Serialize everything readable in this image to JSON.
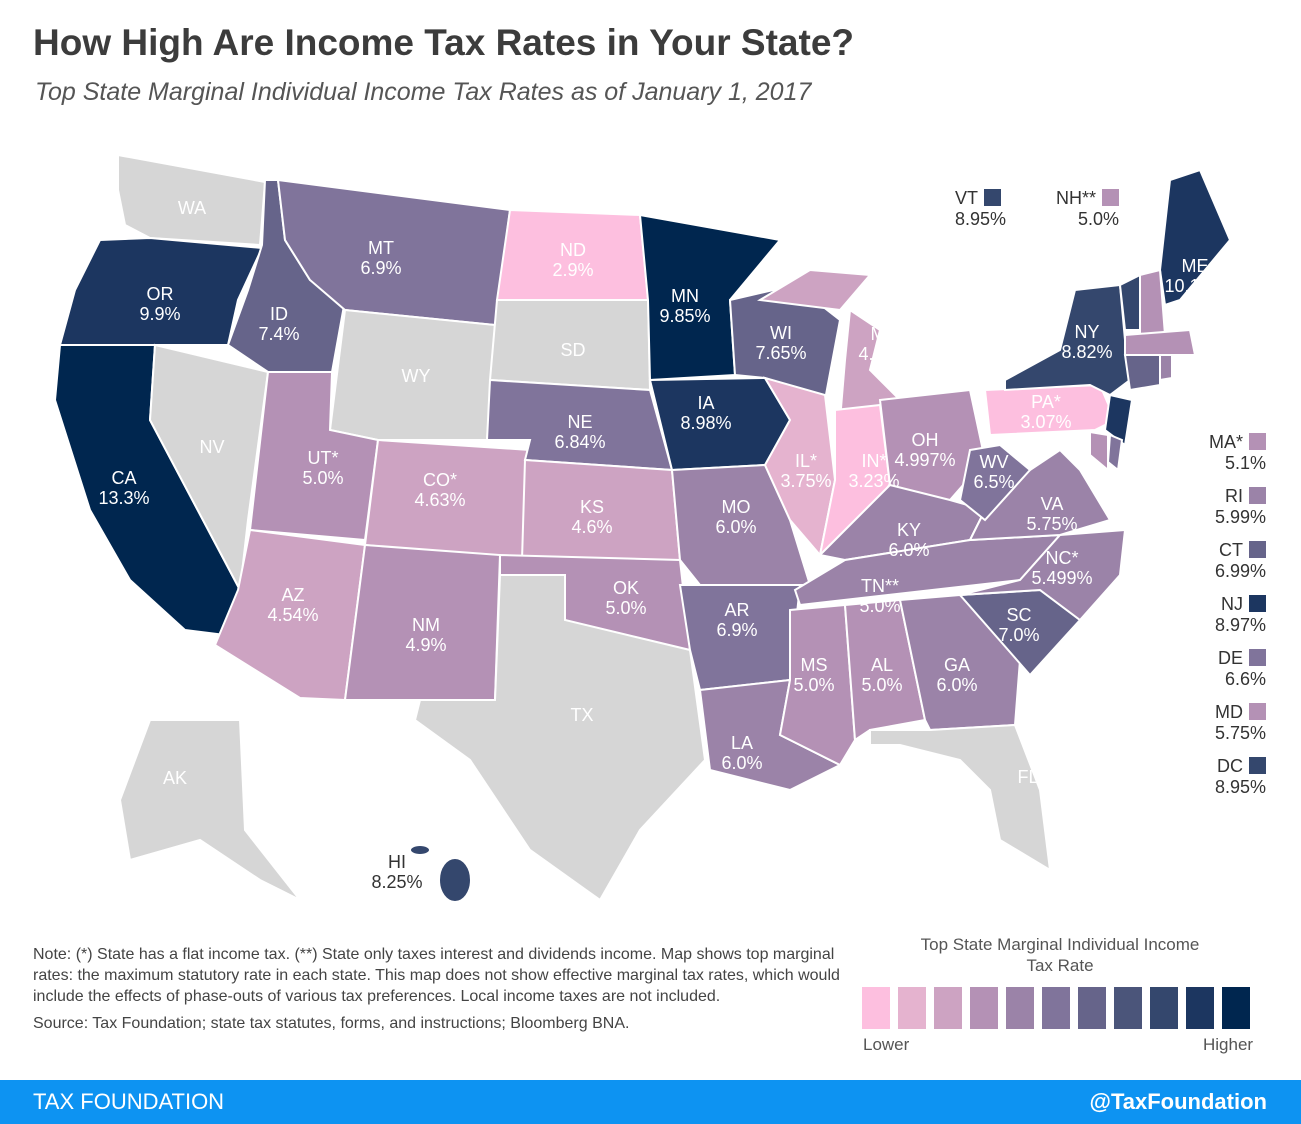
{
  "title": "How High Are Income Tax Rates in Your State?",
  "subtitle": "Top State Marginal Individual Income Tax Rates as of January 1, 2017",
  "states": [
    {
      "abbr": "WA",
      "rate": ""
    },
    {
      "abbr": "OR",
      "rate": "9.9%",
      "color": "#1c3660"
    },
    {
      "abbr": "CA",
      "rate": "13.3%",
      "color": "#00264f"
    },
    {
      "abbr": "NV",
      "rate": ""
    },
    {
      "abbr": "ID",
      "rate": "7.4%",
      "color": "#66648a"
    },
    {
      "abbr": "MT",
      "rate": "6.9%",
      "color": "#80749b"
    },
    {
      "abbr": "WY",
      "rate": ""
    },
    {
      "abbr": "UT*",
      "rate": "5.0%",
      "color": "#b491b5"
    },
    {
      "abbr": "CO*",
      "rate": "4.63%",
      "color": "#cda3c2"
    },
    {
      "abbr": "AZ",
      "rate": "4.54%",
      "color": "#cda3c2"
    },
    {
      "abbr": "NM",
      "rate": "4.9%",
      "color": "#b491b5"
    },
    {
      "abbr": "ND",
      "rate": "2.9%",
      "color": "#fdbfdf"
    },
    {
      "abbr": "SD",
      "rate": ""
    },
    {
      "abbr": "NE",
      "rate": "6.84%",
      "color": "#80749b"
    },
    {
      "abbr": "KS",
      "rate": "4.6%",
      "color": "#cda3c2"
    },
    {
      "abbr": "OK",
      "rate": "5.0%",
      "color": "#b491b5"
    },
    {
      "abbr": "TX",
      "rate": ""
    },
    {
      "abbr": "MN",
      "rate": "9.85%",
      "color": "#00264f"
    },
    {
      "abbr": "IA",
      "rate": "8.98%",
      "color": "#1c3660"
    },
    {
      "abbr": "MO",
      "rate": "6.0%",
      "color": "#9b83a8"
    },
    {
      "abbr": "AR",
      "rate": "6.9%",
      "color": "#80749b"
    },
    {
      "abbr": "LA",
      "rate": "6.0%",
      "color": "#9b83a8"
    },
    {
      "abbr": "WI",
      "rate": "7.65%",
      "color": "#66648a"
    },
    {
      "abbr": "IL*",
      "rate": "3.75%",
      "color": "#e5b3cf"
    },
    {
      "abbr": "MI*",
      "rate": "4.25%",
      "color": "#cda3c2"
    },
    {
      "abbr": "IN*",
      "rate": "3.23%",
      "color": "#fdbfdf"
    },
    {
      "abbr": "OH",
      "rate": "4.997%",
      "color": "#b491b5"
    },
    {
      "abbr": "KY",
      "rate": "6.0%",
      "color": "#9b83a8"
    },
    {
      "abbr": "TN**",
      "rate": "5.0%",
      "color": "#9b83a8"
    },
    {
      "abbr": "MS",
      "rate": "5.0%",
      "color": "#b491b5"
    },
    {
      "abbr": "AL",
      "rate": "5.0%",
      "color": "#b491b5"
    },
    {
      "abbr": "GA",
      "rate": "6.0%",
      "color": "#9b83a8"
    },
    {
      "abbr": "FL",
      "rate": ""
    },
    {
      "abbr": "SC",
      "rate": "7.0%",
      "color": "#66648a"
    },
    {
      "abbr": "NC*",
      "rate": "5.499%",
      "color": "#9b83a8"
    },
    {
      "abbr": "VA",
      "rate": "5.75%",
      "color": "#9b83a8"
    },
    {
      "abbr": "WV",
      "rate": "6.5%",
      "color": "#80749b"
    },
    {
      "abbr": "PA*",
      "rate": "3.07%",
      "color": "#fdbfdf"
    },
    {
      "abbr": "NY",
      "rate": "8.82%",
      "color": "#34476d"
    },
    {
      "abbr": "ME",
      "rate": "10.15%",
      "color": "#1c3660"
    },
    {
      "abbr": "AK",
      "rate": ""
    },
    {
      "abbr": "HI",
      "rate": "8.25%",
      "color": "#34476d"
    }
  ],
  "small_states": [
    {
      "abbr": "VT",
      "rate": "8.95%",
      "color": "#34476d"
    },
    {
      "abbr": "NH**",
      "rate": "5.0%",
      "color": "#b491b5"
    },
    {
      "abbr": "MA*",
      "rate": "5.1%",
      "color": "#b491b5"
    },
    {
      "abbr": "RI",
      "rate": "5.99%",
      "color": "#9b83a8"
    },
    {
      "abbr": "CT",
      "rate": "6.99%",
      "color": "#66648a"
    },
    {
      "abbr": "NJ",
      "rate": "8.97%",
      "color": "#1c3660"
    },
    {
      "abbr": "DE",
      "rate": "6.6%",
      "color": "#80749b"
    },
    {
      "abbr": "MD",
      "rate": "5.75%",
      "color": "#b491b5"
    },
    {
      "abbr": "DC",
      "rate": "8.95%",
      "color": "#34476d"
    }
  ],
  "note": "Note: (*) State has a flat income tax. (**) State only taxes interest and dividends income. Map shows top marginal rates: the maximum statutory rate in each state. This map does not show effective marginal tax rates, which would include the effects of phase-outs of various tax preferences. Local income taxes are not included.",
  "source": "Source: Tax Foundation; state tax statutes, forms, and instructions; Bloomberg BNA.",
  "legend": {
    "title": "Top State Marginal Individual Income Tax Rate",
    "low": "Lower",
    "high": "Higher",
    "colors": [
      "#fdbfdf",
      "#e5b3cf",
      "#cda3c2",
      "#b491b5",
      "#9b83a8",
      "#80749b",
      "#66648a",
      "#4b557a",
      "#34476d",
      "#1c3660",
      "#00264f"
    ]
  },
  "footer": {
    "brand": "TAX FOUNDATION",
    "handle": "@TaxFoundation"
  }
}
